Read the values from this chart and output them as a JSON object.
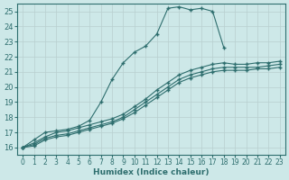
{
  "xlabel": "Humidex (Indice chaleur)",
  "ylabel": "",
  "background_color": "#cde8e8",
  "grid_color": "#c0d8d8",
  "line_color": "#2e6e6e",
  "xlim": [
    -0.5,
    23.5
  ],
  "ylim": [
    15.5,
    25.5
  ],
  "xticks": [
    0,
    1,
    2,
    3,
    4,
    5,
    6,
    7,
    8,
    9,
    10,
    11,
    12,
    13,
    14,
    15,
    16,
    17,
    18,
    19,
    20,
    21,
    22,
    23
  ],
  "yticks": [
    16,
    17,
    18,
    19,
    20,
    21,
    22,
    23,
    24,
    25
  ],
  "series": [
    {
      "x": [
        0,
        1,
        2,
        3,
        4,
        5,
        6,
        7,
        8,
        9,
        10,
        11,
        12,
        13,
        14,
        15,
        16,
        17,
        18
      ],
      "y": [
        16.0,
        16.5,
        17.0,
        17.1,
        17.2,
        17.4,
        17.8,
        19.0,
        20.5,
        21.6,
        22.3,
        22.7,
        23.5,
        25.2,
        25.3,
        25.1,
        25.2,
        25.0,
        22.6
      ]
    },
    {
      "x": [
        0,
        1,
        2,
        3,
        4,
        5,
        6,
        7,
        8,
        9,
        10,
        11,
        12,
        13,
        14,
        15,
        16,
        17,
        18,
        19,
        20,
        21,
        22,
        23
      ],
      "y": [
        16.0,
        16.3,
        16.7,
        17.0,
        17.1,
        17.3,
        17.5,
        17.7,
        17.9,
        18.2,
        18.7,
        19.2,
        19.8,
        20.3,
        20.8,
        21.1,
        21.3,
        21.5,
        21.6,
        21.5,
        21.5,
        21.6,
        21.6,
        21.7
      ]
    },
    {
      "x": [
        0,
        1,
        2,
        3,
        4,
        5,
        6,
        7,
        8,
        9,
        10,
        11,
        12,
        13,
        14,
        15,
        16,
        17,
        18,
        19,
        20,
        21,
        22,
        23
      ],
      "y": [
        16.0,
        16.2,
        16.6,
        16.8,
        16.9,
        17.1,
        17.3,
        17.5,
        17.7,
        18.0,
        18.5,
        19.0,
        19.5,
        20.0,
        20.5,
        20.8,
        21.0,
        21.2,
        21.3,
        21.3,
        21.3,
        21.3,
        21.4,
        21.5
      ]
    },
    {
      "x": [
        0,
        1,
        2,
        3,
        4,
        5,
        6,
        7,
        8,
        9,
        10,
        11,
        12,
        13,
        14,
        15,
        16,
        17,
        18,
        19,
        20,
        21,
        22,
        23
      ],
      "y": [
        16.0,
        16.1,
        16.5,
        16.7,
        16.8,
        17.0,
        17.2,
        17.4,
        17.6,
        17.9,
        18.3,
        18.8,
        19.3,
        19.8,
        20.3,
        20.6,
        20.8,
        21.0,
        21.1,
        21.1,
        21.1,
        21.2,
        21.2,
        21.3
      ]
    }
  ]
}
